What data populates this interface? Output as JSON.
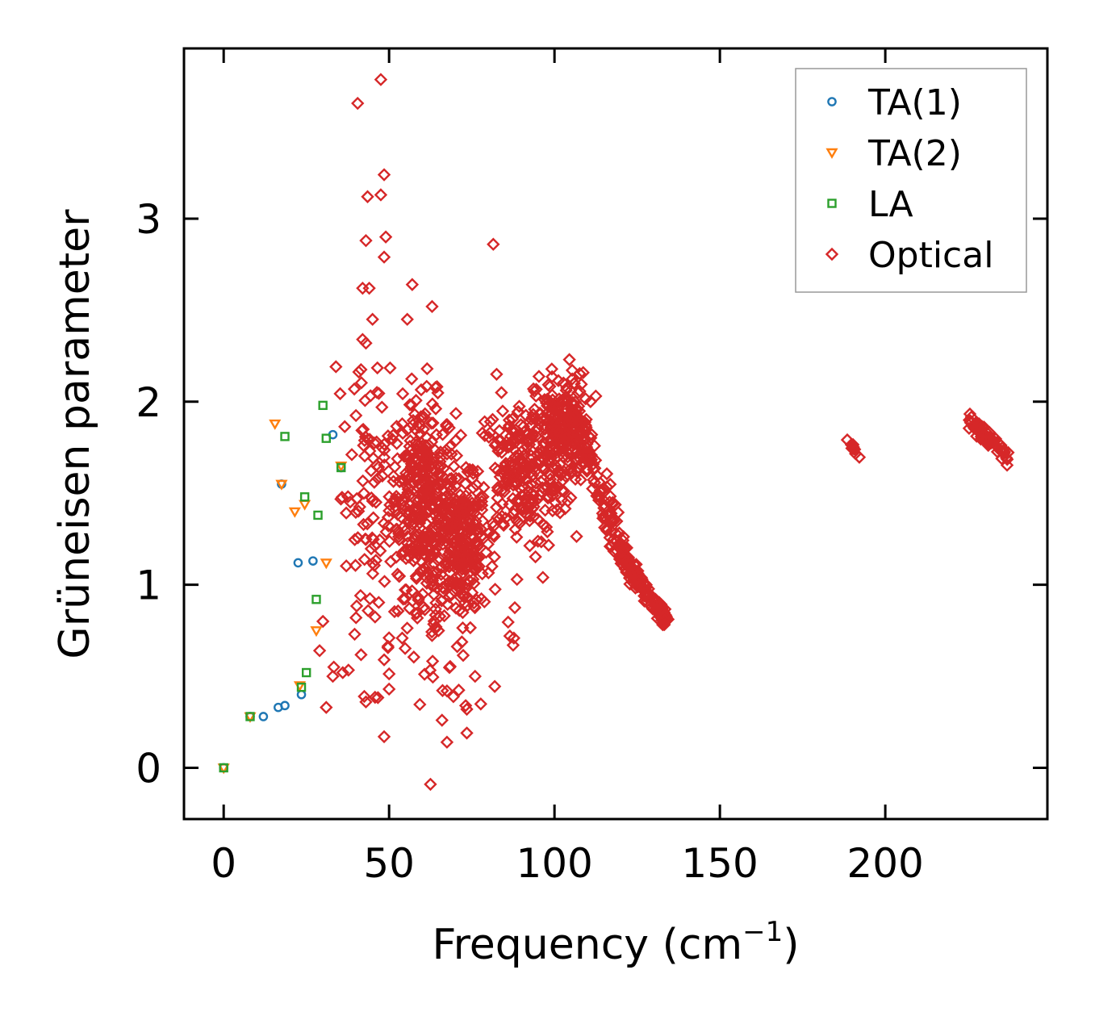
{
  "chart_data": {
    "type": "scatter",
    "title": "",
    "xlabel": "Frequency (cm",
    "xlabel_sup": "−1",
    "xlabel_close": ")",
    "ylabel": "Grüneisen parameter",
    "xlim": [
      -12,
      249
    ],
    "ylim": [
      -0.28,
      3.93
    ],
    "x_ticks": [
      0,
      50,
      100,
      150,
      200
    ],
    "x_tick_labels": [
      "0",
      "50",
      "100",
      "150",
      "200"
    ],
    "y_ticks": [
      0,
      1,
      2,
      3
    ],
    "y_tick_labels": [
      "0",
      "1",
      "2",
      "3"
    ],
    "grid": false,
    "legend_position": "top-right",
    "series": [
      {
        "name": "TA(1)",
        "marker": "circle",
        "color": "#1f77b4",
        "points": [
          [
            0,
            0
          ],
          [
            8,
            0.28
          ],
          [
            12,
            0.28
          ],
          [
            16.5,
            0.33
          ],
          [
            18.5,
            0.34
          ],
          [
            17.5,
            1.55
          ],
          [
            22.5,
            1.12
          ],
          [
            27,
            1.13
          ],
          [
            23.5,
            0.4
          ],
          [
            33,
            1.82
          ],
          [
            35.5,
            1.64
          ]
        ]
      },
      {
        "name": "TA(2)",
        "marker": "triangle-down",
        "color": "#ff7f0e",
        "points": [
          [
            0,
            0
          ],
          [
            8,
            0.28
          ],
          [
            15.5,
            1.88
          ],
          [
            17.5,
            1.55
          ],
          [
            21.5,
            1.4
          ],
          [
            24.5,
            1.44
          ],
          [
            23,
            0.45
          ],
          [
            28,
            0.75
          ],
          [
            31,
            1.12
          ],
          [
            35.5,
            1.65
          ]
        ]
      },
      {
        "name": "LA",
        "marker": "square",
        "color": "#2ca02c",
        "points": [
          [
            0,
            0
          ],
          [
            8,
            0.28
          ],
          [
            18.5,
            1.81
          ],
          [
            24.5,
            1.48
          ],
          [
            30,
            1.98
          ],
          [
            31,
            1.8
          ],
          [
            28.5,
            1.38
          ],
          [
            28,
            0.92
          ],
          [
            25,
            0.52
          ],
          [
            23.5,
            0.44
          ],
          [
            35.5,
            1.64
          ]
        ]
      },
      {
        "name": "Optical",
        "marker": "diamond",
        "color": "#d62728",
        "points": [],
        "clusters": [
          {
            "cx": 60,
            "cy": 1.5,
            "sx": 5,
            "sy": 0.25,
            "n": 320
          },
          {
            "cx": 72,
            "cy": 1.2,
            "sx": 4,
            "sy": 0.18,
            "n": 200
          },
          {
            "cx": 90,
            "cy": 1.6,
            "sx": 7,
            "sy": 0.2,
            "n": 260
          },
          {
            "cx": 102,
            "cy": 1.85,
            "sx": 4,
            "sy": 0.15,
            "n": 200
          },
          {
            "cx": 44,
            "cy": 1.5,
            "sx": 5,
            "sy": 0.55,
            "n": 120
          },
          {
            "cx": 66,
            "cy": 1.0,
            "sx": 8,
            "sy": 0.4,
            "n": 120
          }
        ],
        "outliers": [
          [
            47.5,
            3.76
          ],
          [
            40.5,
            3.63
          ],
          [
            48.5,
            3.24
          ],
          [
            43.5,
            3.12
          ],
          [
            47.5,
            3.13
          ],
          [
            43,
            2.88
          ],
          [
            49,
            2.9
          ],
          [
            48.5,
            2.79
          ],
          [
            81.5,
            2.86
          ],
          [
            57,
            2.64
          ],
          [
            63,
            2.52
          ],
          [
            55.5,
            2.45
          ],
          [
            42,
            2.62
          ],
          [
            44,
            2.62
          ],
          [
            45,
            2.45
          ],
          [
            42,
            2.34
          ],
          [
            43,
            2.32
          ],
          [
            61.5,
            2.18
          ],
          [
            82.5,
            2.15
          ],
          [
            104.5,
            2.23
          ],
          [
            62.5,
            -0.09
          ],
          [
            48.5,
            0.17
          ],
          [
            66,
            0.26
          ],
          [
            73.5,
            0.19
          ],
          [
            67.5,
            0.14
          ],
          [
            31,
            0.33
          ],
          [
            73.5,
            0.32
          ],
          [
            43,
            0.36
          ],
          [
            42.5,
            0.39
          ],
          [
            67.5,
            0.42
          ],
          [
            50,
            0.43
          ],
          [
            36,
            0.52
          ],
          [
            76,
            0.5
          ],
          [
            50,
            0.71
          ],
          [
            48.5,
            0.59
          ],
          [
            96.5,
            1.04
          ],
          [
            40,
            0.82
          ],
          [
            30,
            0.8
          ],
          [
            64,
            0.76
          ],
          [
            29,
            0.64
          ],
          [
            33,
            0.5
          ],
          [
            86.5,
            0.72
          ],
          [
            87.5,
            0.67
          ]
        ],
        "bands": [
          {
            "x0": 105,
            "y0": 1.95,
            "x1": 121,
            "y1": 1.15,
            "n": 130,
            "jx": 2.0,
            "jy": 0.12
          },
          {
            "x0": 120,
            "y0": 1.15,
            "x1": 134,
            "y1": 0.8,
            "n": 150,
            "jx": 1.2,
            "jy": 0.05
          },
          {
            "x0": 189,
            "y0": 1.78,
            "x1": 192.5,
            "y1": 1.69,
            "n": 10,
            "jx": 0.4,
            "jy": 0.015
          },
          {
            "x0": 225,
            "y0": 1.9,
            "x1": 237,
            "y1": 1.7,
            "n": 70,
            "jx": 0.8,
            "jy": 0.04
          }
        ]
      }
    ]
  }
}
